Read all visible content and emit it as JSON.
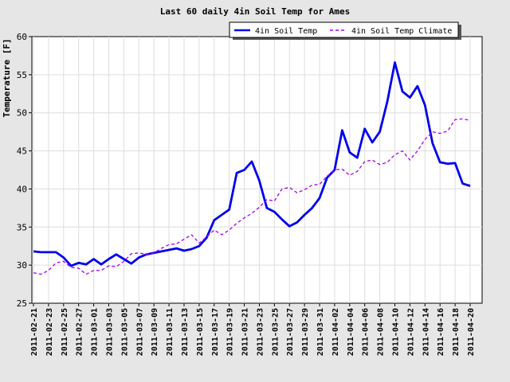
{
  "chart_data": {
    "type": "line",
    "title": "Last 60 daily 4in Soil Temp for  Ames",
    "xlabel": "",
    "ylabel": "Temperature [F]",
    "ylim": [
      25,
      60
    ],
    "yticks": [
      25,
      30,
      35,
      40,
      45,
      50,
      55,
      60
    ],
    "grid": true,
    "legend_position": "top-right",
    "x": [
      "2011-02-21",
      "2011-02-22",
      "2011-02-23",
      "2011-02-24",
      "2011-02-25",
      "2011-02-26",
      "2011-02-27",
      "2011-02-28",
      "2011-03-01",
      "2011-03-02",
      "2011-03-03",
      "2011-03-04",
      "2011-03-05",
      "2011-03-06",
      "2011-03-07",
      "2011-03-08",
      "2011-03-09",
      "2011-03-10",
      "2011-03-11",
      "2011-03-12",
      "2011-03-13",
      "2011-03-14",
      "2011-03-15",
      "2011-03-16",
      "2011-03-17",
      "2011-03-18",
      "2011-03-19",
      "2011-03-20",
      "2011-03-21",
      "2011-03-22",
      "2011-03-23",
      "2011-03-24",
      "2011-03-25",
      "2011-03-26",
      "2011-03-27",
      "2011-03-28",
      "2011-03-29",
      "2011-03-30",
      "2011-03-31",
      "2011-04-01",
      "2011-04-02",
      "2011-04-03",
      "2011-04-04",
      "2011-04-05",
      "2011-04-06",
      "2011-04-07",
      "2011-04-08",
      "2011-04-09",
      "2011-04-10",
      "2011-04-11",
      "2011-04-12",
      "2011-04-13",
      "2011-04-14",
      "2011-04-15",
      "2011-04-16",
      "2011-04-17",
      "2011-04-18",
      "2011-04-19",
      "2011-04-20"
    ],
    "xtick_labels": [
      "2011-02-21",
      "2011-02-23",
      "2011-02-25",
      "2011-02-27",
      "2011-03-01",
      "2011-03-03",
      "2011-03-05",
      "2011-03-07",
      "2011-03-09",
      "2011-03-11",
      "2011-03-13",
      "2011-03-15",
      "2011-03-17",
      "2011-03-19",
      "2011-03-21",
      "2011-03-23",
      "2011-03-25",
      "2011-03-27",
      "2011-03-29",
      "2011-03-31",
      "2011-04-02",
      "2011-04-04",
      "2011-04-06",
      "2011-04-08",
      "2011-04-10",
      "2011-04-12",
      "2011-04-14",
      "2011-04-16",
      "2011-04-18",
      "2011-04-20"
    ],
    "series": [
      {
        "name": "4in Soil Temp",
        "color": "#0000ee",
        "style": "solid",
        "values": [
          31.8,
          31.7,
          31.7,
          31.7,
          31.0,
          29.9,
          30.3,
          30.1,
          30.8,
          30.1,
          30.8,
          31.4,
          30.8,
          30.2,
          31.0,
          31.4,
          31.6,
          31.8,
          32.0,
          32.2,
          31.9,
          32.1,
          32.5,
          33.6,
          35.9,
          36.6,
          37.3,
          42.1,
          42.5,
          43.6,
          41.1,
          37.5,
          37.0,
          36.0,
          35.1,
          35.6,
          36.6,
          37.5,
          38.8,
          41.5,
          42.5,
          47.7,
          44.8,
          44.1,
          47.9,
          46.1,
          47.5,
          51.5,
          56.6,
          52.8,
          52.0,
          53.5,
          51.0,
          46.0,
          43.5,
          43.3,
          43.4,
          40.7,
          40.4
        ]
      },
      {
        "name": "4in Soil Temp Climate",
        "color": "#aa00ee",
        "style": "dashed",
        "values": [
          29.0,
          28.8,
          29.3,
          30.3,
          30.5,
          29.7,
          29.6,
          28.8,
          29.3,
          29.3,
          29.9,
          29.8,
          30.5,
          31.5,
          31.6,
          31.4,
          31.6,
          32.2,
          32.7,
          32.8,
          33.4,
          34.0,
          32.9,
          33.7,
          34.6,
          34.0,
          34.6,
          35.5,
          36.2,
          36.8,
          37.6,
          38.6,
          38.4,
          40.0,
          40.2,
          39.5,
          39.9,
          40.5,
          40.6,
          41.7,
          42.5,
          42.6,
          41.8,
          42.3,
          43.6,
          43.8,
          43.2,
          43.5,
          44.5,
          45.0,
          43.8,
          45.0,
          46.5,
          47.5,
          47.3,
          47.6,
          49.1,
          49.2,
          49.0
        ]
      }
    ]
  }
}
